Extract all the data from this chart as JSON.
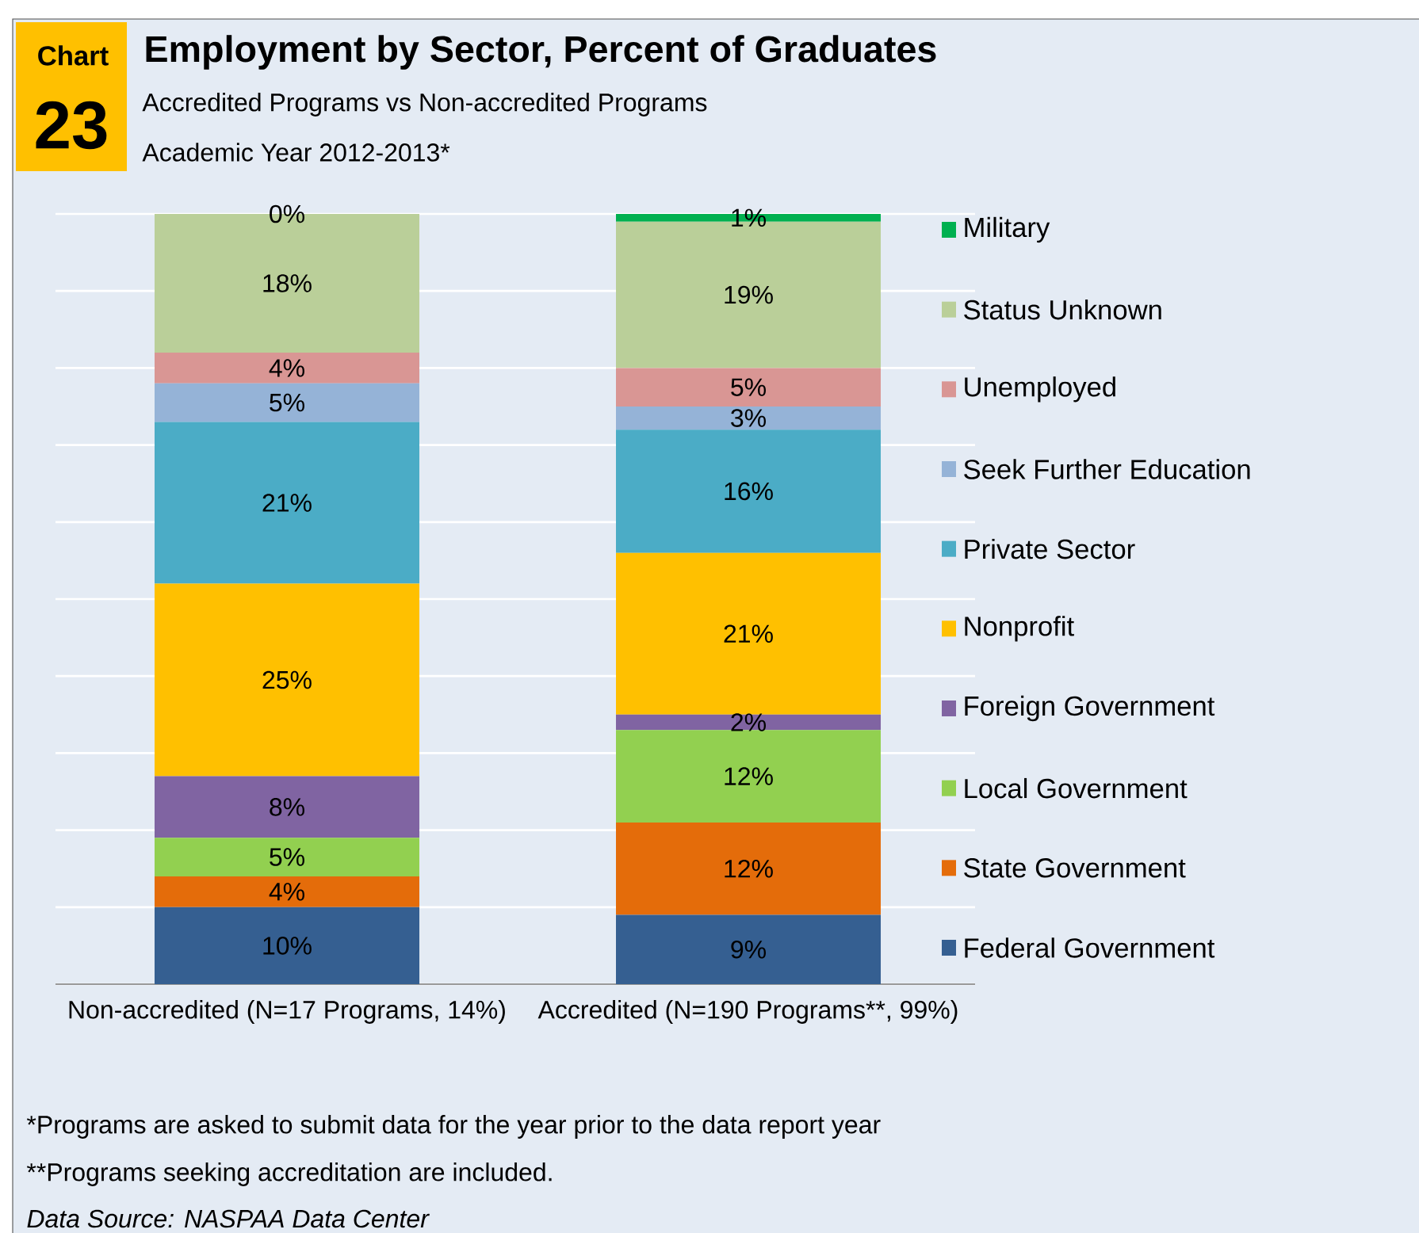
{
  "chart_data": {
    "type": "bar",
    "stacked": true,
    "title": "Employment by Sector, Percent of Graduates",
    "subtitle": "Accredited Programs vs Non-accredited Programs",
    "annotations": [
      "Chart",
      "23",
      "Academic Year 2012-2013*",
      "*Programs are asked to submit data for the year prior to the data report year",
      "**Programs seeking accreditation are included.",
      "*Data Source: NASPAA Data Center*"
    ],
    "categories": [
      "Non-accredited (N=17 Programs, 14%)",
      "Accredited (N=190 Programs**, 99%)"
    ],
    "ylim": [
      0,
      100
    ],
    "yticks": [
      {
        "value": 0,
        "label": null
      },
      {
        "value": 10,
        "label": null
      },
      {
        "value": 20,
        "label": null
      },
      {
        "value": 30,
        "label": null
      },
      {
        "value": 40,
        "label": null
      },
      {
        "value": 50,
        "label": null
      },
      {
        "value": 60,
        "label": null
      },
      {
        "value": 70,
        "label": null
      },
      {
        "value": 80,
        "label": null
      },
      {
        "value": 90,
        "label": null
      },
      {
        "value": 100,
        "label": null
      }
    ],
    "tick_labels": "x",
    "grid": "y",
    "legend": "right",
    "series": [
      {
        "name": "Federal Government",
        "color": "#355f91",
        "values": [
          10,
          9
        ],
        "value_labels": [
          "10%",
          "9%"
        ]
      },
      {
        "name": "State Government",
        "color": "#e46c0a",
        "values": [
          4,
          12
        ],
        "value_labels": [
          "4%",
          "12%"
        ]
      },
      {
        "name": "Local Government",
        "color": "#92d050",
        "values": [
          5,
          12
        ],
        "value_labels": [
          "5%",
          "12%"
        ]
      },
      {
        "name": "Foreign Government",
        "color": "#8064a2",
        "values": [
          8,
          2
        ],
        "value_labels": [
          "8%",
          "2%"
        ]
      },
      {
        "name": "Nonprofit",
        "color": "#ffc000",
        "values": [
          25,
          21
        ],
        "value_labels": [
          "25%",
          "21%"
        ]
      },
      {
        "name": "Private Sector",
        "color": "#4bacc6",
        "values": [
          21,
          16
        ],
        "value_labels": [
          "21%",
          "16%"
        ]
      },
      {
        "name": "Seek Further Education",
        "color": "#95b3d7",
        "values": [
          5,
          3
        ],
        "value_labels": [
          "5%",
          "3%"
        ]
      },
      {
        "name": "Unemployed",
        "color": "#d99694",
        "values": [
          4,
          5
        ],
        "value_labels": [
          "4%",
          "5%"
        ]
      },
      {
        "name": "Status Unknown",
        "color": "#bacf99",
        "values": [
          18,
          19
        ],
        "value_labels": [
          "18%",
          "19%"
        ]
      },
      {
        "name": "Military",
        "color": "#00b050",
        "values": [
          0,
          1
        ],
        "value_labels": [
          "0%",
          "1%"
        ]
      }
    ]
  }
}
